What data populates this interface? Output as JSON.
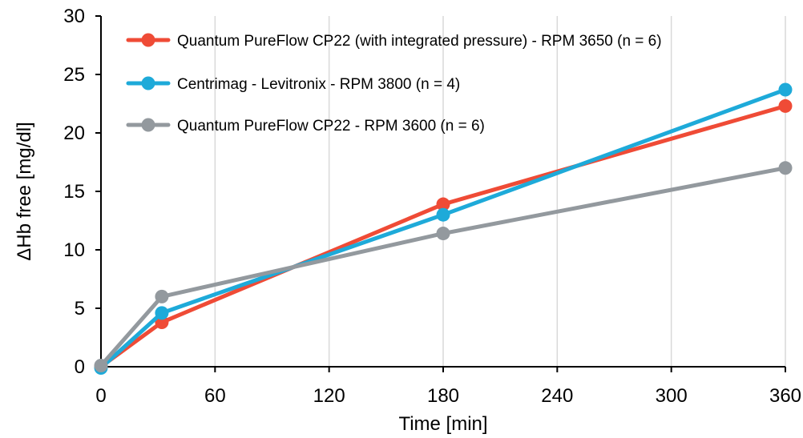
{
  "chart_data": {
    "type": "line",
    "xlabel": "Time [min]",
    "ylabel": "ΔHb free [mg/dl]",
    "xlim": [
      0,
      360
    ],
    "ylim": [
      0,
      30
    ],
    "xticks": [
      0,
      60,
      120,
      180,
      240,
      300,
      360
    ],
    "yticks": [
      0,
      5,
      10,
      15,
      20,
      25,
      30
    ],
    "grid": "vertical",
    "legend_position": "top-left",
    "series": [
      {
        "name": "Quantum PureFlow CP22 (with integrated pressure) - RPM 3650 (n = 6)",
        "color": "#ef4b36",
        "x": [
          0,
          32,
          180,
          360
        ],
        "y": [
          0,
          3.8,
          13.9,
          22.3
        ]
      },
      {
        "name": "Centrimag - Levitronix - RPM 3800 (n = 4)",
        "color": "#1eaad9",
        "x": [
          0,
          32,
          180,
          360
        ],
        "y": [
          -0.1,
          4.6,
          13.0,
          23.7
        ]
      },
      {
        "name": "Quantum PureFlow CP22 - RPM 3600 (n = 6)",
        "color": "#93999e",
        "x": [
          0,
          32,
          180,
          360
        ],
        "y": [
          0.1,
          6.0,
          11.4,
          17.0
        ]
      }
    ]
  }
}
